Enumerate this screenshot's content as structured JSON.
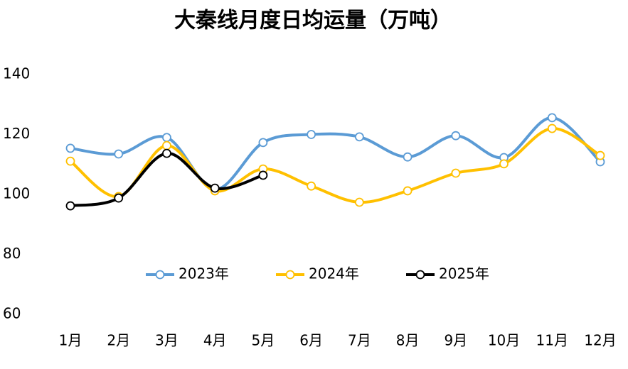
{
  "chart_data": {
    "type": "line",
    "title": "大秦线月度日均运量（万吨）",
    "categories": [
      "1月",
      "2月",
      "3月",
      "4月",
      "5月",
      "6月",
      "7月",
      "8月",
      "9月",
      "10月",
      "11月",
      "12月"
    ],
    "series": [
      {
        "name": "2023年",
        "color": "#5b9bd5",
        "values": [
          115.4,
          113.5,
          119,
          101.7,
          117.3,
          120,
          119.2,
          112.5,
          119.6,
          112.3,
          125.6,
          110.9
        ]
      },
      {
        "name": "2024年",
        "color": "#ffc000",
        "values": [
          111.1,
          99.3,
          116.3,
          101.2,
          108.5,
          102.8,
          97.4,
          101.2,
          107.1,
          110.2,
          122,
          113
        ]
      },
      {
        "name": "2025年",
        "color": "#000000",
        "values": [
          96.2,
          98.8,
          113.7,
          102.1,
          106.4,
          null,
          null,
          null,
          null,
          null,
          null,
          null
        ]
      }
    ],
    "ylim": [
      60,
      140
    ],
    "yticks": [
      60,
      80,
      100,
      120,
      140
    ],
    "grid": false,
    "legend": "center"
  }
}
